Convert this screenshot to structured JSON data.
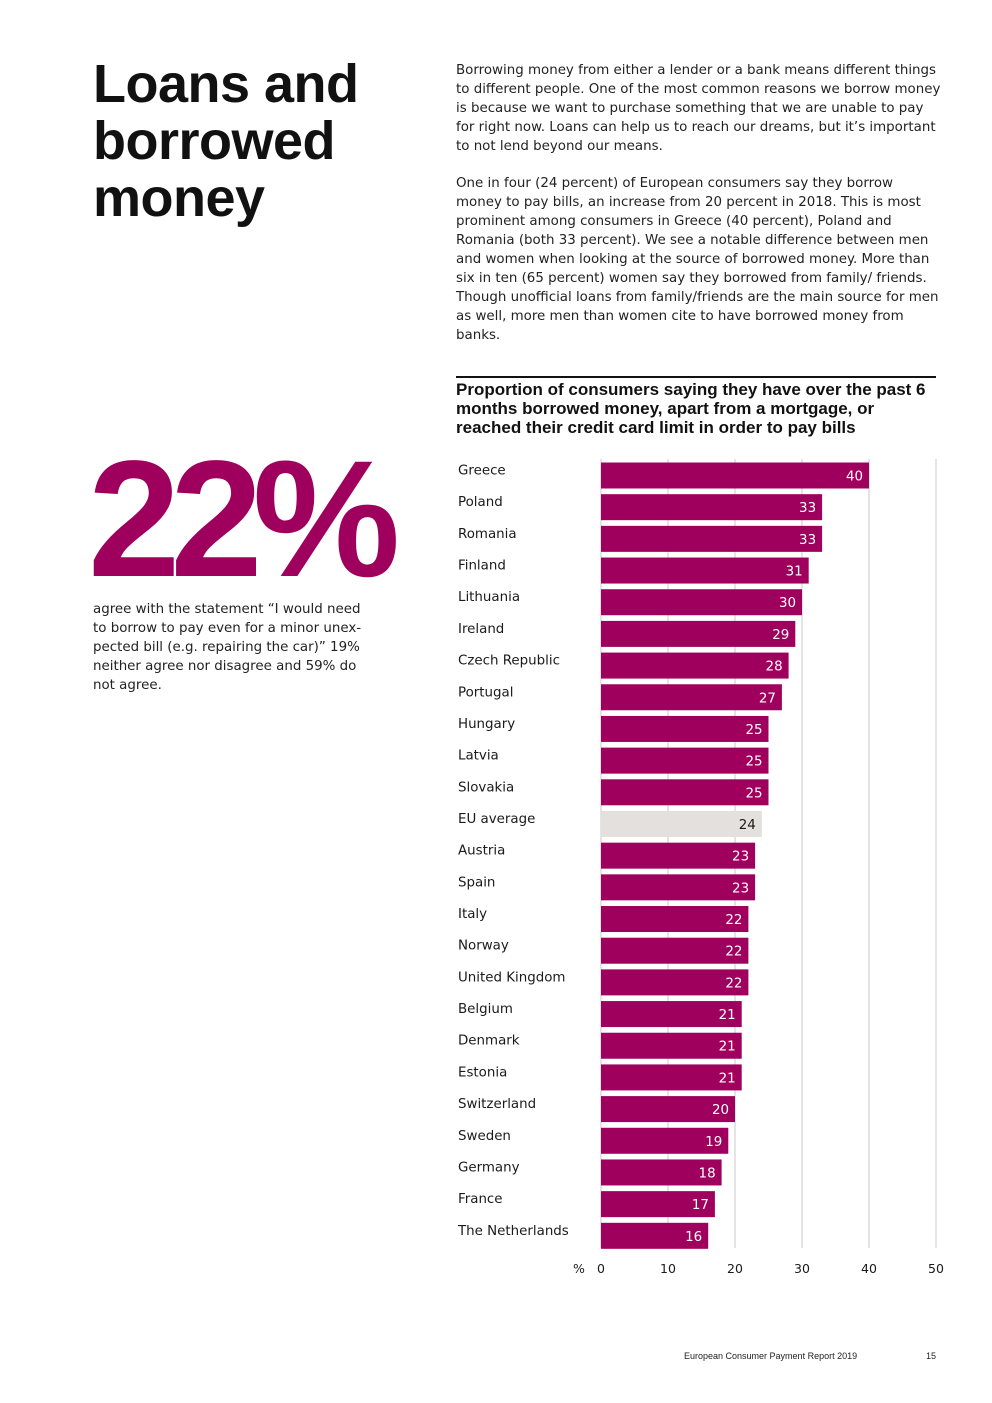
{
  "heading": "Loans and borrowed money",
  "intro": {
    "p1": "Borrowing money from either a lender or a bank means different things to different people. One of the most common reasons we borrow money is because we want to purchase something that we are unable to pay for right now. Loans can help us to reach our dreams, but it’s important to not lend beyond our means.",
    "p2": "One in four (24 percent) of European consumers say they borrow money to pay bills, an increase from 20 percent in 2018. This is most prominent among consumers in Greece (40 percent), Poland and Romania (both 33 percent). We see a notable difference between men and women when looking at the source of borrowed money. More than six in ten (65 percent) women say they borrowed from family/ friends. Though unofficial loans from family/friends are the main source for men as well, more men than women cite to have borrowed money from banks."
  },
  "stat": {
    "value": "22%",
    "text": "agree with the statement “I would need to borrow to pay even for a minor unex-pected bill (e.g. repairing the car)” 19% neither agree nor disagree and 59% do not agree."
  },
  "footer": {
    "title": "European Consumer Payment Report 2019",
    "page": "15"
  },
  "colors": {
    "bar": "#a0005d",
    "highlight": "#e3e0dd",
    "grid": "#c8c8c8",
    "text": "#1a1a1a"
  },
  "chart_data": {
    "type": "bar",
    "orientation": "horizontal",
    "title": "Proportion of consumers saying they have over the past 6 months borrowed money, apart from a mortgage, or reached their credit card limit in order to pay bills",
    "unit_label": "%",
    "xlim": [
      0,
      50
    ],
    "ticks": [
      0,
      10,
      20,
      30,
      40,
      50
    ],
    "grid": true,
    "highlight_category": "EU average",
    "categories": [
      "Greece",
      "Poland",
      "Romania",
      "Finland",
      "Lithuania",
      "Ireland",
      "Czech Republic",
      "Portugal",
      "Hungary",
      "Latvia",
      "Slovakia",
      "EU average",
      "Austria",
      "Spain",
      "Italy",
      "Norway",
      "United Kingdom",
      "Belgium",
      "Denmark",
      "Estonia",
      "Switzerland",
      "Sweden",
      "Germany",
      "France",
      "The Netherlands"
    ],
    "values": [
      40,
      33,
      33,
      31,
      30,
      29,
      28,
      27,
      25,
      25,
      25,
      24,
      23,
      23,
      22,
      22,
      22,
      21,
      21,
      21,
      20,
      19,
      18,
      17,
      16
    ]
  }
}
